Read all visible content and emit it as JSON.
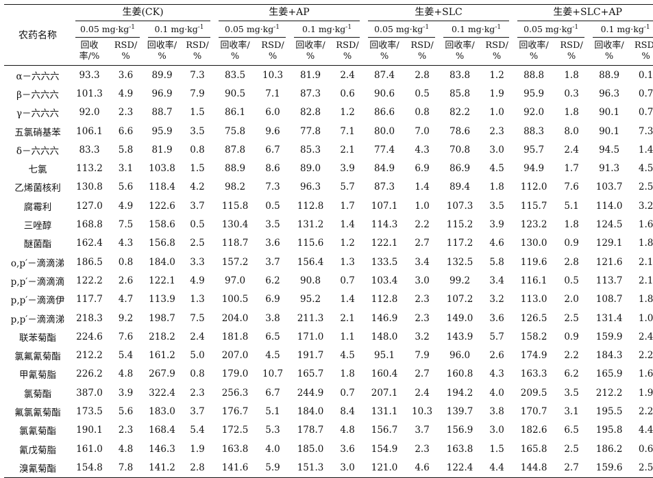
{
  "header": {
    "row_label": "农药名称",
    "groups": [
      "生姜(CK)",
      "生姜+AP",
      "生姜+SLC",
      "生姜+SLC+AP"
    ],
    "concentrations": [
      "0.05 mg·kg",
      "0.1 mg·kg"
    ],
    "conc_sup": "-1",
    "recovery_a": "回收\n率/%",
    "recovery_b": "回收率/\n%",
    "rsd": "RSD/\n%"
  },
  "rows": [
    {
      "name": "α－六六六",
      "v": [
        "93.3",
        "3.6",
        "89.9",
        "7.3",
        "83.5",
        "10.3",
        "81.9",
        "2.4",
        "87.4",
        "2.8",
        "83.8",
        "1.2",
        "88.8",
        "1.8",
        "88.9",
        "0.1"
      ]
    },
    {
      "name": "β－六六六",
      "v": [
        "101.3",
        "4.9",
        "96.9",
        "7.9",
        "90.5",
        "7.1",
        "87.3",
        "0.6",
        "90.6",
        "0.5",
        "85.8",
        "1.9",
        "95.9",
        "0.3",
        "96.3",
        "0.7"
      ]
    },
    {
      "name": "γ－六六六",
      "v": [
        "92.0",
        "2.3",
        "88.7",
        "1.5",
        "86.1",
        "6.0",
        "82.8",
        "1.2",
        "86.6",
        "0.8",
        "82.2",
        "1.0",
        "92.0",
        "1.8",
        "90.1",
        "0.7"
      ]
    },
    {
      "name": "五氯硝基苯",
      "v": [
        "106.1",
        "6.6",
        "95.9",
        "3.5",
        "75.8",
        "9.6",
        "77.8",
        "7.1",
        "80.0",
        "7.0",
        "78.6",
        "2.3",
        "88.3",
        "8.0",
        "90.1",
        "7.3"
      ]
    },
    {
      "name": "δ－六六六",
      "v": [
        "83.3",
        "5.8",
        "81.9",
        "0.8",
        "87.8",
        "6.7",
        "85.3",
        "2.1",
        "77.4",
        "4.3",
        "70.8",
        "3.0",
        "95.7",
        "2.4",
        "94.5",
        "1.4"
      ]
    },
    {
      "name": "七氯",
      "v": [
        "113.2",
        "3.1",
        "103.8",
        "1.5",
        "88.9",
        "8.6",
        "89.0",
        "3.9",
        "84.9",
        "6.9",
        "86.9",
        "4.5",
        "94.9",
        "1.7",
        "91.3",
        "4.5"
      ]
    },
    {
      "name": "乙烯菌核利",
      "v": [
        "130.8",
        "5.6",
        "118.4",
        "4.2",
        "98.2",
        "7.3",
        "96.3",
        "5.7",
        "87.3",
        "1.4",
        "89.4",
        "1.8",
        "112.0",
        "7.6",
        "103.7",
        "2.5"
      ]
    },
    {
      "name": "腐霉利",
      "v": [
        "127.0",
        "4.9",
        "122.6",
        "3.7",
        "115.8",
        "0.5",
        "112.8",
        "1.7",
        "107.1",
        "1.0",
        "107.3",
        "3.5",
        "115.7",
        "5.1",
        "114.0",
        "3.2"
      ]
    },
    {
      "name": "三唑醇",
      "v": [
        "168.8",
        "7.5",
        "158.6",
        "0.5",
        "130.4",
        "3.5",
        "131.2",
        "1.4",
        "114.3",
        "2.2",
        "115.2",
        "3.9",
        "123.2",
        "1.8",
        "124.5",
        "1.6"
      ]
    },
    {
      "name": "醚菌酯",
      "v": [
        "162.4",
        "4.3",
        "156.8",
        "2.5",
        "118.7",
        "3.6",
        "115.6",
        "1.2",
        "122.1",
        "2.7",
        "117.2",
        "4.6",
        "130.0",
        "0.9",
        "129.1",
        "1.8"
      ]
    },
    {
      "name": "o,p′－滴滴涕",
      "v": [
        "186.5",
        "0.8",
        "184.0",
        "3.3",
        "157.2",
        "3.7",
        "156.4",
        "1.3",
        "133.5",
        "3.4",
        "132.5",
        "5.8",
        "119.6",
        "2.8",
        "121.6",
        "2.1"
      ]
    },
    {
      "name": "p,p′－滴滴滴",
      "v": [
        "122.2",
        "2.6",
        "122.1",
        "4.9",
        "97.0",
        "6.2",
        "90.8",
        "0.7",
        "103.4",
        "3.0",
        "99.2",
        "3.4",
        "116.1",
        "0.5",
        "113.7",
        "2.1"
      ]
    },
    {
      "name": "p,p′－滴滴伊",
      "v": [
        "117.7",
        "4.7",
        "113.9",
        "1.3",
        "100.5",
        "6.9",
        "95.2",
        "1.4",
        "112.8",
        "2.3",
        "107.2",
        "3.2",
        "113.0",
        "2.0",
        "108.7",
        "1.8"
      ]
    },
    {
      "name": "p,p′－滴滴涕",
      "v": [
        "218.3",
        "9.2",
        "198.7",
        "7.5",
        "204.0",
        "3.8",
        "211.3",
        "2.1",
        "146.9",
        "2.3",
        "149.0",
        "3.6",
        "126.5",
        "2.5",
        "131.4",
        "1.0"
      ]
    },
    {
      "name": "联苯菊酯",
      "v": [
        "224.6",
        "7.6",
        "218.2",
        "2.4",
        "181.8",
        "6.5",
        "171.0",
        "1.1",
        "148.0",
        "3.2",
        "143.9",
        "5.7",
        "158.2",
        "0.9",
        "159.9",
        "2.4"
      ]
    },
    {
      "name": "氯氟氰菊酯",
      "v": [
        "212.2",
        "5.4",
        "161.2",
        "5.0",
        "207.0",
        "4.5",
        "191.7",
        "4.5",
        "95.1",
        "7.9",
        "96.0",
        "2.6",
        "174.9",
        "2.2",
        "184.3",
        "2.2"
      ]
    },
    {
      "name": "甲氰菊脂",
      "v": [
        "226.2",
        "4.8",
        "267.9",
        "0.8",
        "179.0",
        "10.7",
        "165.7",
        "1.8",
        "160.4",
        "2.7",
        "160.8",
        "4.3",
        "163.3",
        "6.2",
        "165.9",
        "1.6"
      ]
    },
    {
      "name": "氯菊酯",
      "v": [
        "387.0",
        "3.9",
        "322.4",
        "2.3",
        "256.3",
        "6.7",
        "244.9",
        "0.7",
        "207.1",
        "2.4",
        "194.2",
        "4.0",
        "209.5",
        "3.5",
        "212.2",
        "1.9"
      ]
    },
    {
      "name": "氟氯氰菊酯",
      "v": [
        "173.5",
        "5.6",
        "183.0",
        "3.7",
        "176.7",
        "5.1",
        "184.0",
        "8.4",
        "131.1",
        "10.3",
        "139.7",
        "3.8",
        "170.7",
        "3.1",
        "195.5",
        "2.2"
      ]
    },
    {
      "name": "氯氰菊酯",
      "v": [
        "190.1",
        "2.3",
        "168.4",
        "5.4",
        "172.5",
        "5.3",
        "178.7",
        "4.8",
        "156.7",
        "3.7",
        "156.9",
        "3.0",
        "182.6",
        "6.5",
        "195.8",
        "4.4"
      ]
    },
    {
      "name": "氰戊菊脂",
      "v": [
        "161.0",
        "4.8",
        "146.3",
        "1.9",
        "163.8",
        "4.0",
        "185.0",
        "3.6",
        "154.9",
        "2.3",
        "163.8",
        "1.5",
        "165.8",
        "2.5",
        "186.2",
        "0.6"
      ]
    },
    {
      "name": "溴氰菊酯",
      "v": [
        "154.8",
        "7.8",
        "141.2",
        "2.8",
        "141.6",
        "5.9",
        "151.3",
        "3.0",
        "121.0",
        "4.6",
        "122.4",
        "4.4",
        "144.8",
        "2.7",
        "159.6",
        "2.5"
      ]
    }
  ]
}
